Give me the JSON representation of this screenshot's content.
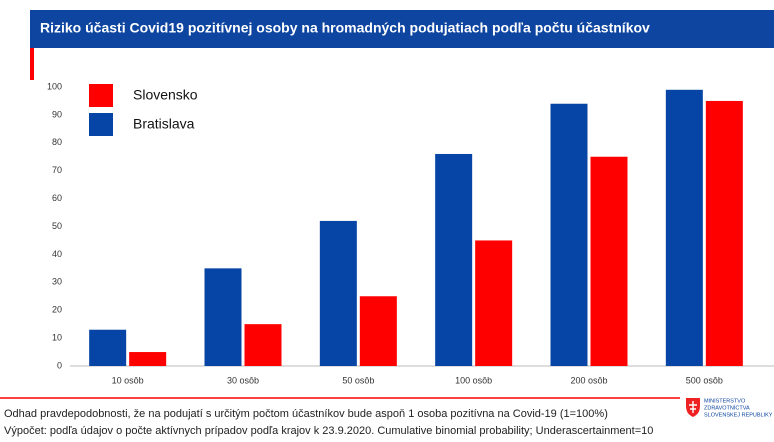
{
  "chart_data": {
    "type": "bar",
    "title": "Riziko účasti Covid19 pozitívnej osoby na hromadných podujatiach podľa počtu účastníkov",
    "categories": [
      "10 osôb",
      "30 osôb",
      "50 osôb",
      "100 osôb",
      "200 osôb",
      "500 osôb"
    ],
    "series": [
      {
        "name": "Bratislava",
        "color": "#0645a6",
        "values": [
          13,
          35,
          52,
          76,
          94,
          99
        ]
      },
      {
        "name": "Slovensko",
        "color": "#ff0000",
        "values": [
          5,
          15,
          25,
          45,
          75,
          95
        ]
      }
    ],
    "ylim": [
      0,
      100
    ],
    "yticks": [
      0,
      10,
      20,
      30,
      40,
      50,
      60,
      70,
      80,
      90,
      100
    ],
    "grid": false,
    "legend": "top-left"
  },
  "footnotes": [
    "Odhad pravdepodobnosti, že na podujatí s určitým počtom účastníkov bude aspoň 1 osoba pozitívna na Covid-19 (1=100%)",
    "Výpočet: podľa údajov o počte aktívnych prípadov podľa krajov k 23.9.2020. Cumulative binomial probability; Underascertainment=10"
  ],
  "logo": [
    "MINISTERSTVO",
    "ZDRAVOTNÍCTVA",
    "SLOVENSKEJ REPUBLIKY"
  ]
}
